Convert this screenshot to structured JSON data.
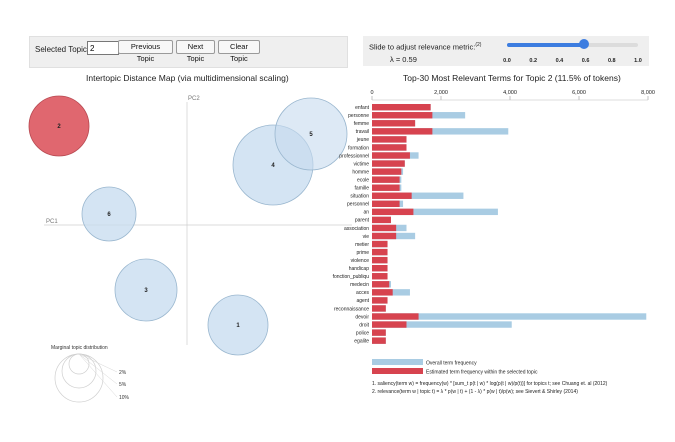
{
  "controls": {
    "selected_topic_label": "Selected Topic:",
    "selected_topic_value": "2",
    "prev_label": "Previous Topic",
    "next_label": "Next Topic",
    "clear_label": "Clear Topic"
  },
  "slider": {
    "label": "Slide to adjust relevance metric:",
    "label_sup": "(2)",
    "lambda_text": "λ = 0.59",
    "value": 0.59,
    "ticks": [
      "0.0",
      "0.2",
      "0.4",
      "0.6",
      "0.8",
      "1.0"
    ]
  },
  "idm": {
    "title": "Intertopic Distance Map (via multidimensional scaling)",
    "pc1": "PC1",
    "pc2": "PC2",
    "marginal_title": "Marginal topic distribution",
    "marginal_sizes": [
      "2%",
      "5%",
      "10%"
    ],
    "topics": [
      {
        "id": "1",
        "selected": false
      },
      {
        "id": "2",
        "selected": true
      },
      {
        "id": "3",
        "selected": false
      },
      {
        "id": "4",
        "selected": false
      },
      {
        "id": "5",
        "selected": false
      },
      {
        "id": "6",
        "selected": false
      }
    ]
  },
  "colors": {
    "overall": "#a9cce3",
    "topic": "#d7434f",
    "circle": "#c6dbef",
    "circle_stroke": "#9ab7cf"
  },
  "chart_data": {
    "type": "bar",
    "title": "Top-30 Most Relevant Terms for Topic 2 (11.5% of tokens)",
    "xlim": [
      0,
      8000
    ],
    "xticks": [
      "0",
      "2,000",
      "4,000",
      "6,000",
      "8,000"
    ],
    "tick_values": [
      0,
      2000,
      4000,
      6000,
      8000
    ],
    "categories": [
      "enfant",
      "personne",
      "femme",
      "travail",
      "jeune",
      "formation",
      "professionnel",
      "victime",
      "homme",
      "ecole",
      "famille",
      "situation",
      "personnel",
      "an",
      "parent",
      "association",
      "vie",
      "metier",
      "prime",
      "violence",
      "handicap",
      "fonction_publiqu",
      "medecin",
      "acces",
      "agent",
      "reconnaissance",
      "devoir",
      "droit",
      "police",
      "egalite"
    ],
    "series": [
      {
        "name": "Overall term frequency",
        "values": [
          1700,
          2700,
          1250,
          3950,
          1000,
          1000,
          1350,
          950,
          900,
          850,
          850,
          2650,
          900,
          3650,
          550,
          1000,
          1250,
          450,
          450,
          450,
          450,
          450,
          550,
          1100,
          450,
          400,
          7950,
          4050,
          400,
          400
        ]
      },
      {
        "name": "Estimated term frequency within the selected topic",
        "values": [
          1700,
          1750,
          1250,
          1750,
          1000,
          1000,
          1100,
          950,
          850,
          800,
          800,
          1150,
          800,
          1200,
          550,
          700,
          700,
          450,
          450,
          450,
          450,
          450,
          500,
          600,
          450,
          400,
          1350,
          1000,
          400,
          400
        ]
      }
    ],
    "legend": [
      "Overall term frequency",
      "Estimated term frequency within the selected topic"
    ],
    "footnotes": [
      "1. saliency(term w) = frequency(w) * [sum_t p(t | w) * log(p(t | w)/p(t))] for topics t; see Chuang et. al (2012)",
      "2. relevance(term w | topic t) = λ * p(w | t) + (1 - λ) * p(w | t)/p(w); see Sievert & Shirley (2014)"
    ]
  }
}
